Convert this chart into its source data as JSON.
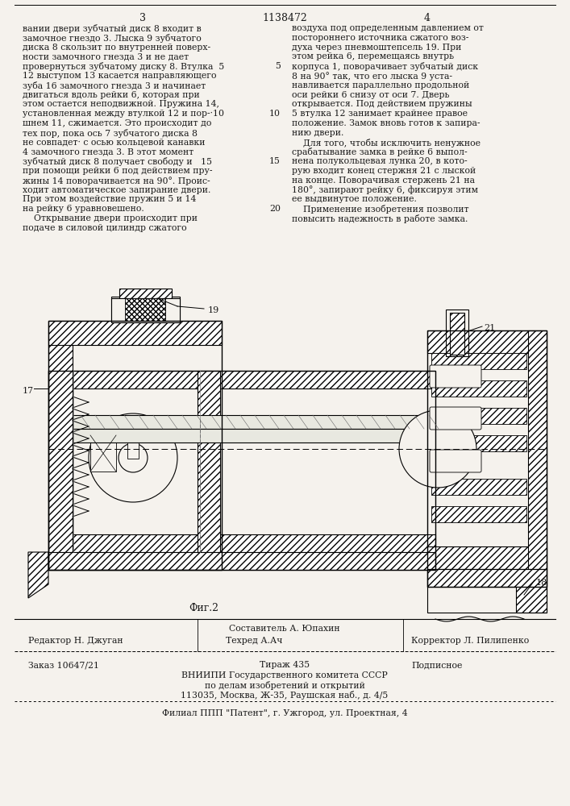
{
  "page_number_left": "3",
  "patent_number": "1138472",
  "page_number_right": "4",
  "left_col_lines": [
    "вании двери зубчатый диск 8 входит в",
    "замочное гнездо 3. Лыска 9 зубчатого",
    "диска 8 скользит по внутренней поверх-",
    "ности замочного гнезда 3 и не дает",
    "провернуться зубчатому диску 8. Втулка  5",
    "12 выступом 13 касается направляющего",
    "зуба 16 замочного гнезда 3 и начинает",
    "двигаться вдоль рейки 6, которая при",
    "этом остается неподвижной. Пружина 14,",
    "установленная между втулкой 12 и пор-·10",
    "шнем 11, сжимается. Это происходит до",
    "тех пор, пока ось 7 зубчатого диска 8",
    "не совпадет· с осью кольцевой канавки",
    "4 замочного гнезда 3. В этот момент",
    "зубчатый диск 8 получает свободу и   15",
    "при помощи рейки 6 под действием пру-",
    "жины 14 поворачивается на 90°. Проис-",
    "ходит автоматическое запирание двери.",
    "При этом воздействие пружин 5 и 14",
    "на рейку 6 уравновешено.",
    "    Открывание двери происходит при",
    "подаче в силовой цилиндр сжатого"
  ],
  "right_col_lines": [
    "воздуха под определенным давлением от",
    "постороннего источника сжатого воз-",
    "духа через пневмоштепсель 19. При",
    "этом рейка 6, перемещаясь внутрь",
    "корпуса 1, поворачивает зубчатый диск",
    "8 на 90° так, что его лыска 9 уста-",
    "навливается параллельно продольной",
    "оси рейки 6 снизу от оси 7. Дверь",
    "открывается. Под действием пружины",
    "5 втулка 12 занимает крайнее правое",
    "положение. Замок вновь готов к запира-",
    "нию двери.",
    "    Для того, чтобы исключить ненужное",
    "срабатывание замка в рейке 6 выпол-",
    "нена полукольцевая лунка 20, в кото-",
    "рую входит конец стержня 21 с лыской",
    "на конце. Поворачивая стержень 21 на",
    "180°, запирают рейку 6, фиксируя этим",
    "ее выдвинутое положение.",
    "    Применение изобретения позволит",
    "повысить надежность в работе замка."
  ],
  "line_nums": {
    "5": 4,
    "10": 9,
    "15": 14,
    "20": 19
  },
  "fig_caption": "Фиг.2",
  "footer_editor": "Редактор Н. Джуган",
  "footer_sostavitel": "Составитель А. Юпахин",
  "footer_tekhred": "Техред А.Ач",
  "footer_korrektor": "Корректор Л. Пилипенко",
  "footer_order": "Заказ 10647/21",
  "footer_tirazh": "Тираж 435",
  "footer_podpisnoe": "Подписное",
  "footer_org": "ВНИИПИ Государственного комитета СССР",
  "footer_org2": "по делам изобретений и открытий",
  "footer_address": "113035, Москва, Ж-35, Раушская наб., д. 4/5",
  "footer_filial": "Филиал ППП \"Патент\", г. Ужгород, ул. Проектная, 4",
  "bg_color": "#f5f2ed",
  "text_color": "#1a1a1a"
}
